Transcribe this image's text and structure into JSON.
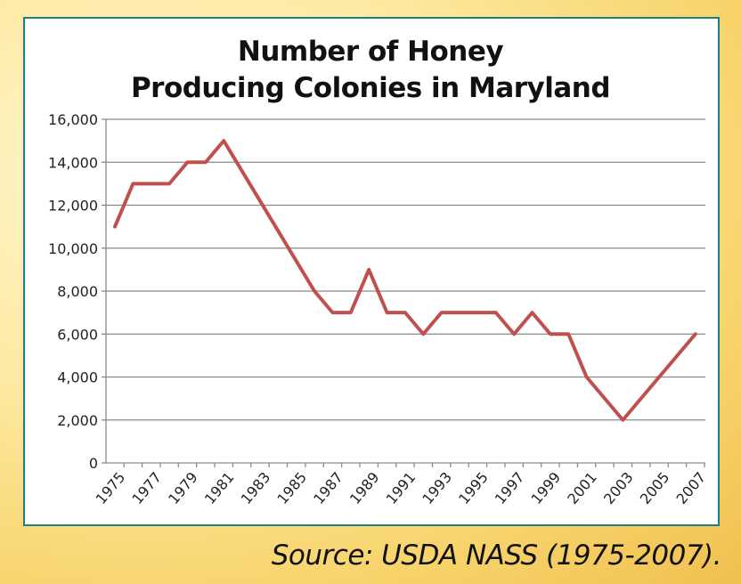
{
  "chart_data": {
    "type": "line",
    "title": "Number of Honey Producing Colonies in Maryland",
    "title_lines": [
      "Number of Honey",
      "Producing Colonies in Maryland"
    ],
    "xlabel": "",
    "ylabel": "",
    "x": [
      1975,
      1976,
      1977,
      1978,
      1979,
      1980,
      1981,
      1982,
      1983,
      1984,
      1985,
      1986,
      1987,
      1988,
      1989,
      1990,
      1991,
      1992,
      1993,
      1994,
      1995,
      1996,
      1997,
      1998,
      1999,
      2000,
      2001,
      2002,
      2003,
      2004,
      2005,
      2006,
      2007
    ],
    "series": [
      {
        "values": [
          11000,
          13000,
          13000,
          13000,
          14000,
          14000,
          15000,
          13600,
          12200,
          10800,
          9400,
          8000,
          7000,
          7000,
          9000,
          7000,
          7000,
          6000,
          7000,
          7000,
          7000,
          7000,
          6000,
          7000,
          6000,
          6000,
          4000,
          3000,
          2000,
          3000,
          4000,
          5000,
          6000
        ],
        "color": "#c0504d"
      }
    ],
    "x_tick_labels": [
      "1975",
      "1977",
      "1979",
      "1981",
      "1983",
      "1985",
      "1987",
      "1989",
      "1991",
      "1993",
      "1995",
      "1997",
      "1999",
      "2001",
      "2003",
      "2005",
      "2007"
    ],
    "y_tick_labels": [
      "0",
      "2,000",
      "4,000",
      "6,000",
      "8,000",
      "10,000",
      "12,000",
      "14,000",
      "16,000"
    ],
    "ylim": [
      0,
      16000
    ],
    "grid": "horizontal",
    "legend": "none",
    "frame_color": "#1f7f80"
  },
  "source": "Source:  USDA NASS (1975-2007)."
}
